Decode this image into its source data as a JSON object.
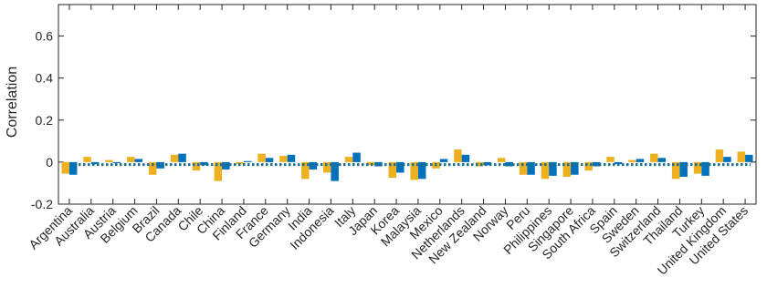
{
  "chart_data": {
    "type": "bar",
    "ylabel": "Correlation",
    "xlabel": "",
    "ylim": [
      -0.2,
      0.75
    ],
    "yticks": [
      -0.2,
      0,
      0.2,
      0.4,
      0.6
    ],
    "ytick_labels": [
      "-0.2",
      "0",
      "0.2",
      "0.4",
      "0.6"
    ],
    "grid": false,
    "categories": [
      "Argentina",
      "Australia",
      "Austria",
      "Belgium",
      "Brazil",
      "Canada",
      "Chile",
      "China",
      "Finland",
      "France",
      "Germany",
      "India",
      "Indonesia",
      "Italy",
      "Japan",
      "Korea",
      "Malaysia",
      "Mexico",
      "Netherlands",
      "New Zealand",
      "Norway",
      "Peru",
      "Philippines",
      "Singapore",
      "South Africa",
      "Spain",
      "Sweden",
      "Switzerland",
      "Thailand",
      "Turkey",
      "United Kingdom",
      "United States"
    ],
    "series": [
      {
        "color": "#EDB120",
        "values": [
          -0.055,
          0.025,
          0.01,
          0.025,
          -0.06,
          0.035,
          -0.04,
          -0.09,
          -0.01,
          0.04,
          0.03,
          -0.08,
          -0.05,
          0.025,
          -0.015,
          -0.075,
          -0.085,
          -0.03,
          0.06,
          -0.02,
          0.02,
          -0.06,
          -0.08,
          -0.07,
          -0.04,
          0.025,
          0.01,
          0.04,
          -0.08,
          -0.055,
          0.06,
          0.05
        ]
      },
      {
        "color": "#0072BD",
        "values": [
          -0.06,
          -0.01,
          -0.005,
          0.015,
          -0.03,
          0.04,
          -0.015,
          -0.035,
          0.005,
          0.02,
          0.035,
          -0.035,
          -0.09,
          0.045,
          -0.02,
          -0.05,
          -0.08,
          0.015,
          0.035,
          -0.015,
          -0.02,
          -0.06,
          -0.065,
          -0.06,
          -0.02,
          -0.01,
          0.015,
          0.02,
          -0.07,
          -0.065,
          0.025,
          0.035
        ]
      }
    ],
    "reference_line": {
      "value": -0.012,
      "style": "dotted",
      "color": "#1B6C8F"
    }
  }
}
